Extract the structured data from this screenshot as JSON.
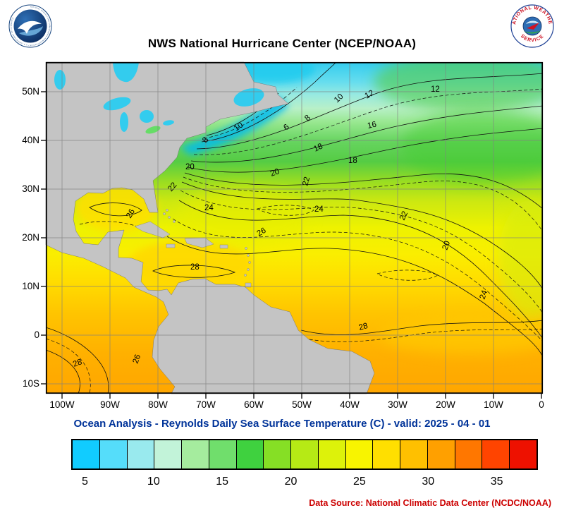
{
  "header": {
    "title": "NWS National Hurricane Center (NCEP/NOAA)",
    "noaa_ring": "NATIONAL OCEANIC AND ATMOSPHERIC ADMINISTRATION • U.S. DEPARTMENT OF COMMERCE",
    "nws_ring_top": "NATIONAL WEATHER",
    "nws_ring_bottom": "SERVICE"
  },
  "map": {
    "y_ticks": [
      "50N",
      "40N",
      "30N",
      "20N",
      "10N",
      "0",
      "10S"
    ],
    "x_ticks": [
      "100W",
      "90W",
      "80W",
      "70W",
      "60W",
      "50W",
      "40W",
      "30W",
      "20W",
      "10W",
      "0"
    ],
    "contour_labels": [
      "10",
      "6",
      "8",
      "10",
      "12",
      "12",
      "16",
      "8",
      "20",
      "18",
      "18",
      "20",
      "22",
      "22",
      "26",
      "24",
      "24",
      "22",
      "20",
      "26",
      "28",
      "28",
      "26",
      "28",
      "24"
    ],
    "land_color": "#C4C4C4"
  },
  "caption": {
    "text": "Ocean Analysis - Reynolds Daily Sea Surface Temperature (C) - valid: 2025 - 04 - 01"
  },
  "colorbar": {
    "ticks": [
      "5",
      "10",
      "15",
      "20",
      "25",
      "30",
      "35"
    ],
    "colors": [
      "#11CCFF",
      "#55DDFA",
      "#99EAEE",
      "#C2F3D9",
      "#A5EC9E",
      "#70DE6C",
      "#3FD13F",
      "#86DF25",
      "#B6EA15",
      "#DDF20A",
      "#F8F400",
      "#FFDF00",
      "#FFC000",
      "#FFA000",
      "#FF7700",
      "#FF4400",
      "#EE1100"
    ]
  },
  "footer": {
    "source": "Data Source: National Climatic Data Center (NCDC/NOAA)"
  },
  "chart_data": {
    "type": "heatmap",
    "title": "NWS National Hurricane Center (NCEP/NOAA)",
    "subtitle": "Ocean Analysis - Reynolds Daily Sea Surface Temperature (C) - valid: 2025 - 04 - 01",
    "x_ticks": [
      "100W",
      "90W",
      "80W",
      "70W",
      "60W",
      "50W",
      "40W",
      "30W",
      "20W",
      "10W",
      "0"
    ],
    "y_ticks": [
      "50N",
      "40N",
      "30N",
      "20N",
      "10N",
      "0",
      "10S"
    ],
    "colorbar_ticks": [
      5,
      10,
      15,
      20,
      25,
      30,
      35
    ],
    "colorbar_range_c": [
      4,
      38
    ],
    "labeled_contour_levels_c": [
      6,
      8,
      10,
      12,
      16,
      18,
      20,
      22,
      24,
      26,
      28
    ],
    "legend_position": "bottom"
  }
}
